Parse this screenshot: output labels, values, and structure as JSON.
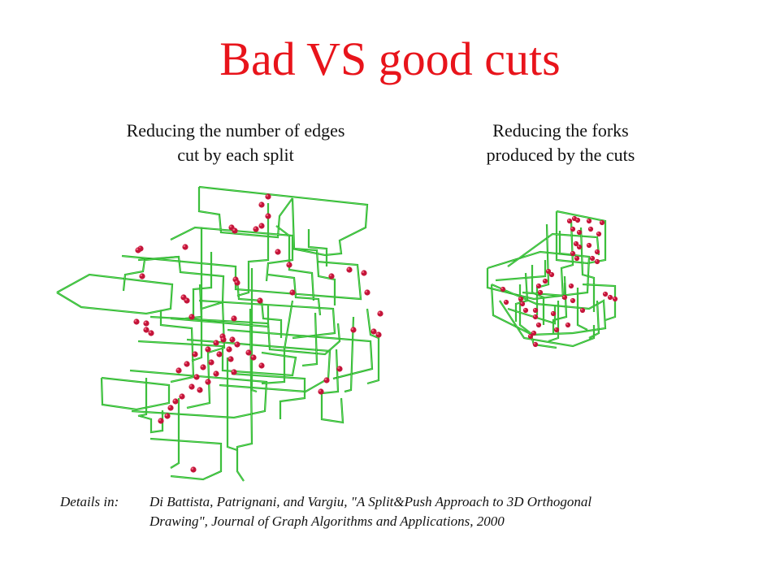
{
  "slide": {
    "title": "Bad VS good cuts",
    "left_caption": [
      "Reducing the number of edges",
      "cut by each split"
    ],
    "right_caption": [
      "Reducing the forks",
      "produced by the cuts"
    ],
    "details_label": "Details in:",
    "reference": [
      "Di Battista, Patrignani, and Vargiu, \"A Split&Push Approach to 3D Orthogonal",
      "Drawing\", Journal of Graph Algorithms and Applications, 2000"
    ]
  },
  "colors": {
    "title": "#e8141b",
    "edge": "#1fa21f",
    "edge_highlight": "#5fe35f",
    "node": "#c4153a",
    "node_highlight": "#f26a84"
  }
}
